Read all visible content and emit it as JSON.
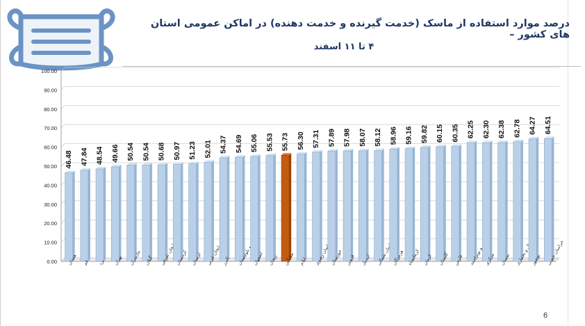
{
  "slide": {
    "title": "درصد موارد استفاده از ماسک (خدمت گیرنده و خدمت دهنده) در اماکن عمومی استان های کشور –",
    "subtitle": "۴ تا ۱۱ اسفند",
    "page_number": "6"
  },
  "icons": {
    "mask": "face-mask-icon"
  },
  "colors": {
    "title": "#1f3864",
    "bar": "#b9d0e8",
    "bar_edge": "#8aa9c8",
    "highlight_bar": "#c55a11",
    "mask_outline": "#6b93c4",
    "mask_fill": "#eef3fa"
  },
  "chart_data": {
    "type": "bar",
    "categories": [
      "همدان",
      "قم",
      "یزد",
      "تهران",
      "مازندران",
      "گیلان",
      "آذربایجان شرقی",
      "کردستان",
      "لرستان",
      "آذربایجان غربی",
      "البرز",
      "سیستان و بلوچستان",
      "اصفهان",
      "زنجان",
      "میانگین",
      "ایلام",
      "خراسان رضوی",
      "خوزستان",
      "قزوین",
      "اردبیل",
      "خراسان شمالی",
      "هرمزگان",
      "کرمانشاه",
      "کرمان",
      "گلستان",
      "فارس",
      "کهگیلویه و بویراحمد",
      "مرکزی",
      "سمنان",
      "چهارمحال و بختیاری",
      "بوشهر",
      "خراسان جنوبی"
    ],
    "values": [
      46.48,
      47.84,
      48.54,
      49.66,
      50.54,
      50.54,
      50.68,
      50.97,
      51.23,
      52.01,
      54.37,
      54.69,
      55.06,
      55.53,
      55.73,
      56.3,
      57.31,
      57.89,
      57.98,
      58.07,
      58.12,
      58.96,
      59.16,
      59.82,
      60.15,
      60.35,
      62.25,
      62.3,
      62.38,
      62.78,
      64.27,
      64.51
    ],
    "value_labels": [
      "46.48",
      "47.84",
      "48.54",
      "49.66",
      "50.54",
      "50.54",
      "50.68",
      "50.97",
      "51.23",
      "52.01",
      "54.37",
      "54.69",
      "55.06",
      "55.53",
      "55.73",
      "56.30",
      "57.31",
      "57.89",
      "57.98",
      "58.07",
      "58.12",
      "58.96",
      "59.16",
      "59.82",
      "60.15",
      "60.35",
      "62.25",
      "62.30",
      "62.38",
      "62.78",
      "64.27",
      "64.51"
    ],
    "highlight_category": "میانگین",
    "yticks": [
      "0.00",
      "10.00",
      "20.00",
      "30.00",
      "40.00",
      "50.00",
      "60.00",
      "70.00",
      "80.00",
      "90.00",
      "100.00"
    ],
    "ylim": [
      0,
      100
    ],
    "grid": true,
    "title": "",
    "xlabel": "",
    "ylabel": ""
  }
}
